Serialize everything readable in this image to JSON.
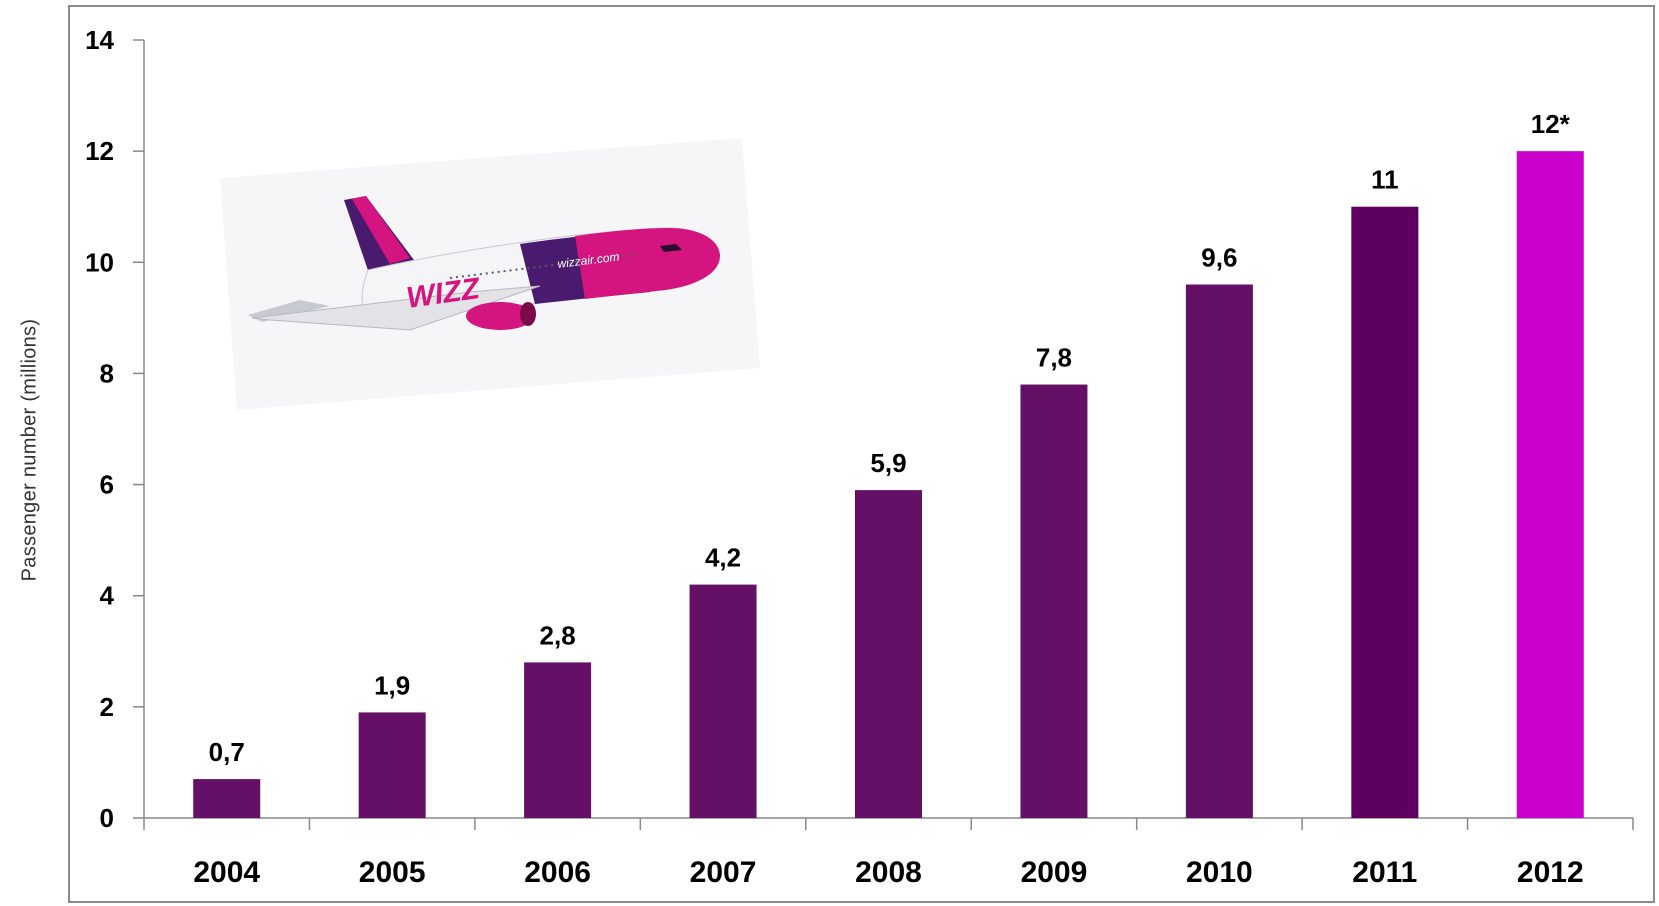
{
  "chart_data": {
    "type": "bar",
    "title": "",
    "xlabel": "",
    "ylabel": "Passenger number (millions)",
    "ylim": [
      0,
      14
    ],
    "yticks": [
      0,
      2,
      4,
      6,
      8,
      10,
      12,
      14
    ],
    "grid": false,
    "legend": "none",
    "categories": [
      "2004",
      "2005",
      "2006",
      "2007",
      "2008",
      "2009",
      "2010",
      "2011",
      "2012"
    ],
    "values": [
      0.7,
      1.9,
      2.8,
      4.2,
      5.9,
      7.8,
      9.6,
      11,
      12
    ],
    "data_labels": [
      "0,7",
      "1,9",
      "2,8",
      "4,2",
      "5,9",
      "7,8",
      "9,6",
      "11",
      "12*"
    ],
    "colors": [
      "#641066",
      "#641066",
      "#641066",
      "#641066",
      "#641066",
      "#641066",
      "#641066",
      "#5e0060",
      "#cc00cc"
    ]
  },
  "image": {
    "airline_logo": "WIZZ",
    "livery_text": "wizzair.com",
    "colors": {
      "magenta": "#d4157f",
      "purple": "#4a1a6e",
      "fuselage": "#f5f5f7"
    }
  }
}
